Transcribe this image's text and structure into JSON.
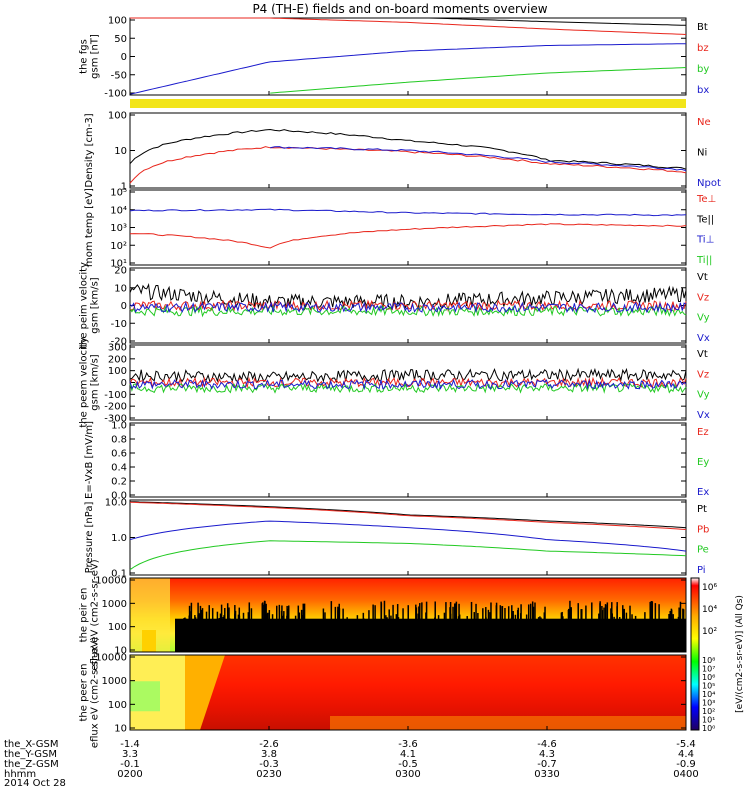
{
  "title": "P4 (TH-E) fields and on-board moments overview",
  "colors": {
    "black": "#000000",
    "red": "#e8261c",
    "green": "#22c922",
    "blue": "#1a1acc",
    "yellow": "#f2e51a",
    "gray": "#bbbbbb"
  },
  "colorbar": {
    "label": "[eV/(cm2-s-sr-eV)] (All Qs)",
    "top_ticks": [
      "10⁶",
      "10⁴",
      "10²"
    ],
    "bottom_ticks": [
      "10⁸",
      "10⁷",
      "10⁶",
      "10⁵",
      "10⁴",
      "10³",
      "10²",
      "10¹",
      "10⁰"
    ]
  },
  "footer": {
    "rows": [
      {
        "label": "the_X-GSM",
        "values": [
          "-1.4",
          "-2.6",
          "-3.6",
          "-4.6",
          "-5.4"
        ]
      },
      {
        "label": "the_Y-GSM",
        "values": [
          "3.3",
          "3.8",
          "4.1",
          "4.3",
          "4.4"
        ]
      },
      {
        "label": "the_Z-GSM",
        "values": [
          "-0.1",
          "-0.3",
          "-0.5",
          "-0.7",
          "-0.9"
        ]
      },
      {
        "label": "hhmm",
        "values": [
          "0200",
          "0230",
          "0300",
          "0330",
          "0400"
        ]
      }
    ],
    "date": "2014 Oct 28"
  },
  "chart_data": [
    {
      "type": "line",
      "id": "fgs",
      "ylabel": "the fgs gsm [nT]",
      "ylim": [
        -110,
        100
      ],
      "yticks": [
        "100",
        "50",
        "0",
        "-50",
        "-100"
      ],
      "legend": [
        {
          "name": "Bt",
          "color": "#000000"
        },
        {
          "name": "bz",
          "color": "#e8261c"
        },
        {
          "name": "by",
          "color": "#22c922"
        },
        {
          "name": "bx",
          "color": "#1a1acc"
        }
      ],
      "x": [
        "0200",
        "0230",
        "0300",
        "0330",
        "0400"
      ],
      "series": [
        {
          "name": "Bt",
          "values": [
            125,
            115,
            102,
            90,
            80
          ]
        },
        {
          "name": "bz",
          "values": [
            118,
            100,
            88,
            70,
            55
          ]
        },
        {
          "name": "by",
          "values": [
            null,
            -105,
            -75,
            -50,
            -35
          ]
        },
        {
          "name": "bx",
          "values": [
            -108,
            -20,
            10,
            25,
            30
          ]
        }
      ]
    },
    {
      "type": "line",
      "id": "density",
      "ylabel": "Density [cm-3]",
      "scale": "log",
      "yticks": [
        "100",
        "10",
        "1"
      ],
      "legend": [
        {
          "name": "Ne",
          "color": "#e8261c"
        },
        {
          "name": "Ni",
          "color": "#000000"
        },
        {
          "name": "Npot",
          "color": "#1a1acc"
        }
      ],
      "x": [
        "0200",
        "0230",
        "0300",
        "0330",
        "0400"
      ],
      "series": [
        {
          "name": "Ni",
          "values": [
            3,
            50,
            20,
            4,
            2
          ]
        },
        {
          "name": "Ne",
          "values": [
            0.6,
            12,
            8,
            3,
            1.5
          ]
        },
        {
          "name": "Npot",
          "values": [
            null,
            12,
            9,
            3.5,
            1.8
          ]
        }
      ]
    },
    {
      "type": "line",
      "id": "temp",
      "ylabel": "mom temp [eV]",
      "scale": "log",
      "yticks": [
        "10⁵",
        "10⁴",
        "10³",
        "10²",
        "10¹"
      ],
      "legend": [
        {
          "name": "Te⊥",
          "color": "#e8261c"
        },
        {
          "name": "Te||",
          "color": "#000000"
        },
        {
          "name": "Ti⊥",
          "color": "#1a1acc"
        },
        {
          "name": "Ti||",
          "color": "#22c922"
        }
      ],
      "x": [
        "0200",
        "0230",
        "0300",
        "0330",
        "0400"
      ],
      "series": [
        {
          "name": "Te⊥",
          "values": [
            500,
            80,
            800,
            1500,
            1200
          ]
        },
        {
          "name": "Ti⊥",
          "values": [
            8000,
            9000,
            6000,
            5000,
            4500
          ]
        }
      ]
    },
    {
      "type": "line",
      "id": "peim",
      "ylabel": "the peim velocity gsm [km/s]",
      "ylim": [
        -20,
        20
      ],
      "yticks": [
        "20",
        "10",
        "0",
        "-10",
        "-20"
      ],
      "legend": [
        {
          "name": "Vt",
          "color": "#000000"
        },
        {
          "name": "Vz",
          "color": "#e8261c"
        },
        {
          "name": "Vy",
          "color": "#22c922"
        },
        {
          "name": "Vx",
          "color": "#1a1acc"
        }
      ],
      "x": [
        "0200",
        "0230",
        "0300",
        "0330",
        "0400"
      ],
      "series": [
        {
          "name": "Vt",
          "values": [
            8,
            2,
            2,
            4,
            6
          ]
        }
      ]
    },
    {
      "type": "line",
      "id": "peem",
      "ylabel": "the peem velocity gsm [km/s]",
      "ylim": [
        -300,
        300
      ],
      "yticks": [
        "300",
        "200",
        "100",
        "0",
        "-100",
        "-200",
        "-300"
      ],
      "legend": [
        {
          "name": "Vt",
          "color": "#000000"
        },
        {
          "name": "Vz",
          "color": "#e8261c"
        },
        {
          "name": "Vy",
          "color": "#22c922"
        },
        {
          "name": "Vx",
          "color": "#1a1acc"
        }
      ],
      "x": [
        "0200",
        "0230",
        "0300",
        "0330",
        "0400"
      ],
      "series": [
        {
          "name": "Vt",
          "values": [
            60,
            40,
            60,
            60,
            60
          ]
        }
      ]
    },
    {
      "type": "line",
      "id": "efield",
      "ylabel": "E=-VxB [mV/m]",
      "ylim": [
        0,
        1
      ],
      "yticks": [
        "1.0",
        "0.8",
        "0.6",
        "0.4",
        "0.2",
        "0.0"
      ],
      "legend": [
        {
          "name": "Ez",
          "color": "#e8261c"
        },
        {
          "name": "Ey",
          "color": "#22c922"
        },
        {
          "name": "Ex",
          "color": "#1a1acc"
        }
      ],
      "series": []
    },
    {
      "type": "line",
      "id": "pressure",
      "ylabel": "Pressure [nPa]",
      "scale": "log",
      "yticks": [
        "10.0",
        "1.0",
        "0.1"
      ],
      "legend": [
        {
          "name": "Pt",
          "color": "#000000"
        },
        {
          "name": "Pb",
          "color": "#e8261c"
        },
        {
          "name": "Pe",
          "color": "#22c922"
        },
        {
          "name": "Pi",
          "color": "#1a1acc"
        }
      ],
      "x": [
        "0200",
        "0230",
        "0300",
        "0330",
        "0400"
      ],
      "series": [
        {
          "name": "Pt",
          "values": [
            22,
            15,
            8,
            5,
            3
          ]
        },
        {
          "name": "Pb",
          "values": [
            21,
            14,
            7.5,
            4.5,
            2.6
          ]
        },
        {
          "name": "Pe",
          "values": [
            0.12,
            1.1,
            0.9,
            0.5,
            0.35
          ]
        },
        {
          "name": "Pi",
          "values": [
            1.2,
            5,
            3,
            1.2,
            0.5
          ]
        }
      ]
    },
    {
      "type": "heatmap",
      "id": "peir",
      "ylabel": "the peir en eflux eV (cm2-s-sr-eV)",
      "yticks": [
        "10000",
        "1000",
        "100",
        "10"
      ]
    },
    {
      "type": "heatmap",
      "id": "peer",
      "ylabel": "the peer en eflux eV (cm2-s-sr-eV)",
      "yticks": [
        "10000",
        "1000",
        "100",
        "10"
      ]
    }
  ]
}
